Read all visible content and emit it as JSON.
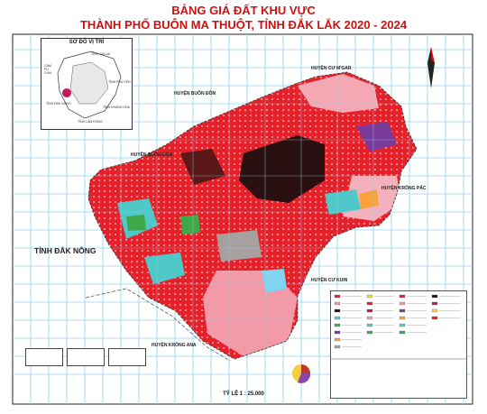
{
  "title_line1": "BẢNG GIÁ ĐẤT KHU VỰC",
  "title_line2": "THÀNH PHỐ BUÔN MA THUỘT, TỈNH ĐẮK LẮK 2020 - 2024",
  "inset": {
    "title": "SƠ ĐỒ VỊ TRÍ",
    "labels": [
      "TỈNH GIA LAI",
      "CAM PU CHIA",
      "TỈNH ĐẮK NÔNG",
      "TỈNH LÂM ĐỒNG",
      "TỈNH KHÁNH HÒA",
      "TỈNH PHÚ YÊN"
    ]
  },
  "neighbors": {
    "cu_mgar": "HUYỆN CƯ M'GAR",
    "buon_don_top": "HUYỆN BUÔN ĐÔN",
    "buon_don_left": "HUYỆN BUÔN ĐÔN",
    "krong_pac": "HUYỆN KRÔNG PẮC",
    "dak_nong": "TỈNH ĐẮK NÔNG",
    "cu_kuin": "HUYỆN CƯ KUIN",
    "krong_ana": "HUYỆN KRÔNG ANA"
  },
  "scale": "TỶ LỆ 1 : 25.000",
  "colors": {
    "red_zone": "#e8202a",
    "dark_zone": "#2a1010",
    "pink_zone": "#f29aa8",
    "cyan_zone": "#4fc8c8",
    "green_zone": "#3fa84a",
    "purple_zone": "#7a3a9a",
    "grid": "#8fd0f0",
    "title": "#d01010"
  },
  "icons": [
    "north-arrow-icon"
  ]
}
